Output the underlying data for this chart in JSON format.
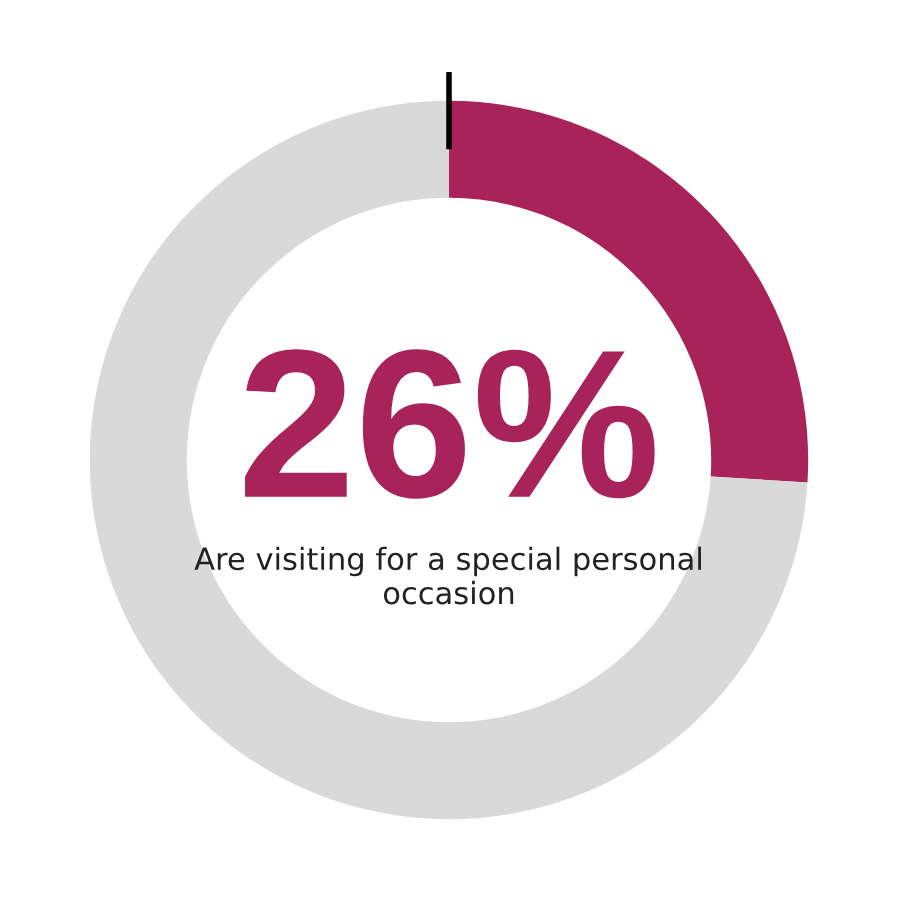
{
  "chart_data": {
    "type": "donut",
    "categories": [
      null,
      null
    ],
    "values": [
      26,
      74
    ],
    "value_labels": [
      "26%",
      null
    ],
    "colors": [
      "#a8235a",
      "#d9d9d9"
    ],
    "annotations": [
      "Are visiting for a special personal occasion"
    ]
  }
}
